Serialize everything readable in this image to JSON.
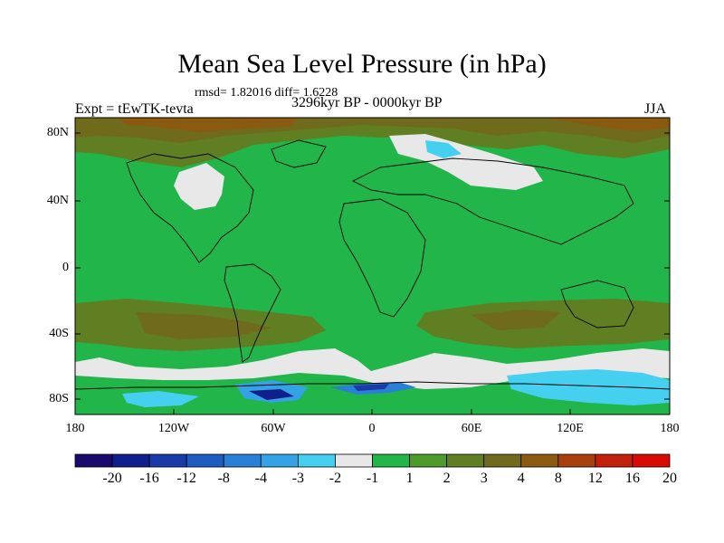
{
  "title": "Mean Sea Level Pressure (in hPa)",
  "stats": "rmsd= 1.82016 diff= 1.6228",
  "experiment": "Expt = tEwTK-tevta",
  "period": "3296kyr BP - 0000kyr BP",
  "season": "JJA",
  "lat_ticks": [
    "80N",
    "40N",
    "0",
    "40S",
    "80S"
  ],
  "lon_ticks": [
    "180",
    "120W",
    "60W",
    "0",
    "60E",
    "120E",
    "180"
  ],
  "colorbar": {
    "colors": [
      "#1a0a6b",
      "#101f8c",
      "#1a3aa8",
      "#1f5cc2",
      "#2a7fd6",
      "#34a3e6",
      "#46d0f0",
      "#e8e8e8",
      "#21b54a",
      "#4e9a2a",
      "#5f7f22",
      "#6f6a1c",
      "#8a5a10",
      "#a8400d",
      "#c2200a",
      "#d80a05"
    ],
    "labels": [
      "-20",
      "-16",
      "-12",
      "-8",
      "-4",
      "-3",
      "-2",
      "-1",
      "1",
      "2",
      "3",
      "4",
      "8",
      "12",
      "16",
      "20"
    ]
  }
}
